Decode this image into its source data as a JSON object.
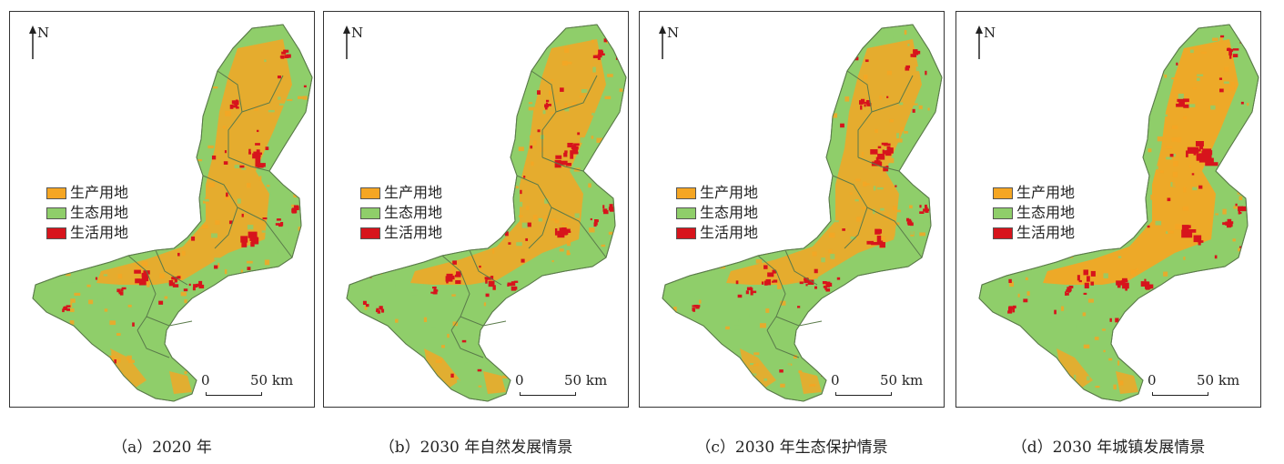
{
  "north_label": "N",
  "legend": [
    {
      "label": "生产用地",
      "color": "#f5a623"
    },
    {
      "label": "生态用地",
      "color": "#8fce6a"
    },
    {
      "label": "生活用地",
      "color": "#d7141c"
    }
  ],
  "scale": {
    "start": "0",
    "end": "50 km"
  },
  "panels": [
    {
      "caption": "（a）2020 年"
    },
    {
      "caption": "（b）2030 年自然发展情景"
    },
    {
      "caption": "（c）2030 年生态保护情景"
    },
    {
      "caption": "（d）2030 年城镇发展情景"
    }
  ]
}
